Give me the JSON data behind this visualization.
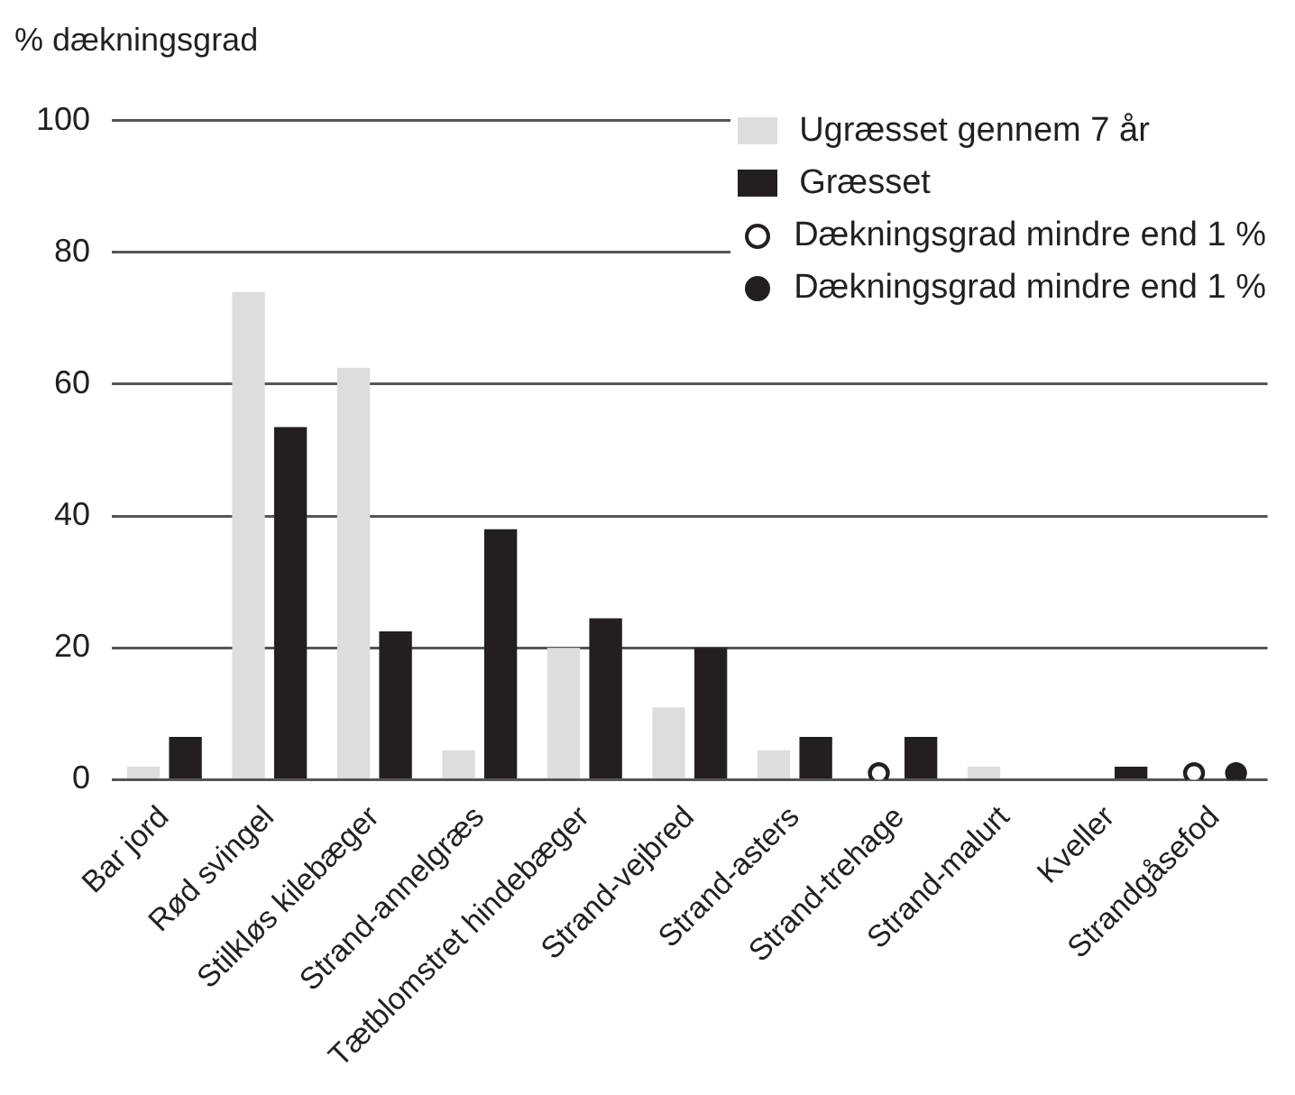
{
  "chart_data": {
    "type": "bar",
    "ylabel": "% dækningsgrad",
    "categories": [
      "Bar jord",
      "Rød svingel",
      "Stilkløs kilebæger",
      "Strand-annelgræs",
      "Tætblomstret hindebæger",
      "Strand-vejbred",
      "Strand-asters",
      "Strand-trehage",
      "Strand-malurt",
      "Kveller",
      "Strandgåsefod"
    ],
    "series": [
      {
        "name": "Ugræsset gennem 7 år",
        "color": "#dcdddf",
        "values": [
          2,
          74,
          62.5,
          4.5,
          20,
          11,
          4.5,
          null,
          2,
          null,
          null
        ]
      },
      {
        "name": "Græsset",
        "color": "#231f20",
        "values": [
          6.5,
          53.5,
          22.5,
          38,
          24.5,
          20,
          6.5,
          6.5,
          null,
          2,
          null
        ]
      },
      {
        "name": "Dækningsgrad mindre end 1 %",
        "type": "scatter",
        "color": "#ffffff",
        "values": [
          null,
          null,
          null,
          null,
          null,
          null,
          null,
          1,
          null,
          null,
          1
        ]
      },
      {
        "name": "Dækningsgrad mindre end 1 %",
        "type": "scatter",
        "color": "#231f20",
        "values": [
          null,
          null,
          null,
          null,
          null,
          null,
          null,
          null,
          null,
          null,
          1
        ]
      }
    ],
    "marker": "circle",
    "ylim": [
      0,
      100
    ],
    "yticks": [
      0,
      20,
      40,
      60,
      80,
      100
    ],
    "grid": "y",
    "legend": "top right"
  }
}
